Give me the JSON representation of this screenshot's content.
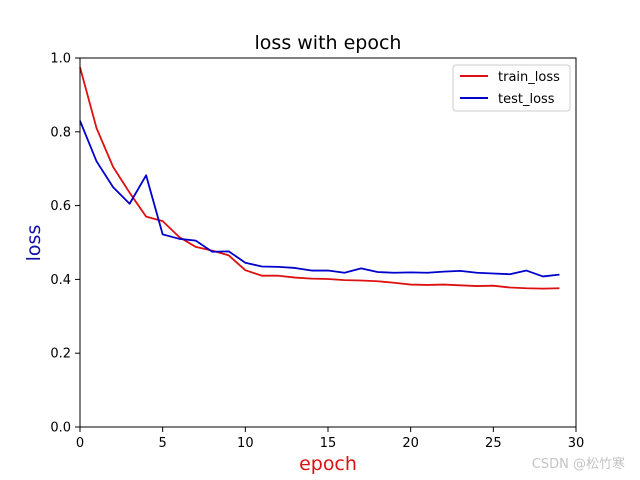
{
  "chart_data": {
    "type": "line",
    "title": "loss with epoch",
    "xlabel": "epoch",
    "ylabel": "loss",
    "xlim": [
      0,
      30
    ],
    "ylim": [
      0.0,
      1.0
    ],
    "xticks": [
      0,
      5,
      10,
      15,
      20,
      25,
      30
    ],
    "yticks": [
      0.0,
      0.2,
      0.4,
      0.6,
      0.8,
      1.0
    ],
    "xtick_labels": [
      "0",
      "5",
      "10",
      "15",
      "20",
      "25",
      "30"
    ],
    "ytick_labels": [
      "0.0",
      "0.2",
      "0.4",
      "0.6",
      "0.8",
      "1.0"
    ],
    "grid": false,
    "legend_position": "top-right",
    "x": [
      0,
      1,
      2,
      3,
      4,
      5,
      6,
      7,
      8,
      9,
      10,
      11,
      12,
      13,
      14,
      15,
      16,
      17,
      18,
      19,
      20,
      21,
      22,
      23,
      24,
      25,
      26,
      27,
      28,
      29
    ],
    "series": [
      {
        "name": "train_loss",
        "color": "#dd1111",
        "values": [
          0.975,
          0.81,
          0.705,
          0.635,
          0.57,
          0.558,
          0.515,
          0.488,
          0.478,
          0.465,
          0.425,
          0.41,
          0.41,
          0.405,
          0.402,
          0.401,
          0.398,
          0.397,
          0.395,
          0.391,
          0.386,
          0.385,
          0.386,
          0.384,
          0.382,
          0.383,
          0.378,
          0.376,
          0.375,
          0.376
        ]
      },
      {
        "name": "test_loss",
        "color": "#0000cc",
        "values": [
          0.83,
          0.72,
          0.65,
          0.605,
          0.682,
          0.522,
          0.51,
          0.505,
          0.475,
          0.476,
          0.445,
          0.435,
          0.434,
          0.431,
          0.424,
          0.424,
          0.418,
          0.43,
          0.42,
          0.418,
          0.419,
          0.418,
          0.421,
          0.423,
          0.418,
          0.416,
          0.414,
          0.424,
          0.408,
          0.413
        ]
      }
    ]
  },
  "colors": {
    "xlabel": "#dd1111",
    "ylabel": "#1111aa"
  },
  "watermark": "CSDN @松竹寒"
}
